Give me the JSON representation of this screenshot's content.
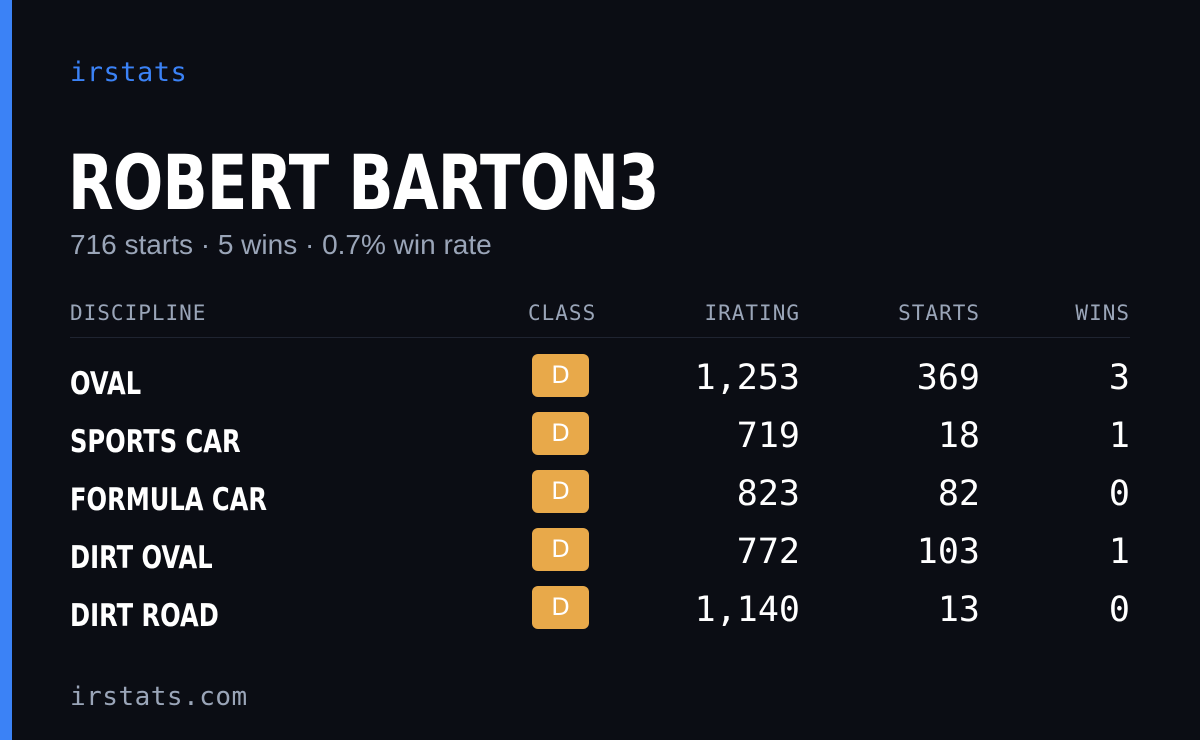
{
  "brand": "irstats",
  "driver": {
    "name": "ROBERT BARTON3",
    "summary": "716 starts · 5 wins · 0.7% win rate"
  },
  "table": {
    "headers": {
      "discipline": "DISCIPLINE",
      "class": "CLASS",
      "irating": "IRATING",
      "starts": "STARTS",
      "wins": "WINS"
    },
    "rows": [
      {
        "discipline": "OVAL",
        "class": "D",
        "irating": "1,253",
        "starts": "369",
        "wins": "3"
      },
      {
        "discipline": "SPORTS CAR",
        "class": "D",
        "irating": "719",
        "starts": "18",
        "wins": "1"
      },
      {
        "discipline": "FORMULA CAR",
        "class": "D",
        "irating": "823",
        "starts": "82",
        "wins": "0"
      },
      {
        "discipline": "DIRT OVAL",
        "class": "D",
        "irating": "772",
        "starts": "103",
        "wins": "1"
      },
      {
        "discipline": "DIRT ROAD",
        "class": "D",
        "irating": "1,140",
        "starts": "13",
        "wins": "0"
      }
    ]
  },
  "footer": "irstats.com",
  "colors": {
    "accent": "#3b82f6",
    "background": "#0b0d14",
    "muted_text": "#9aa5b8",
    "class_d_badge": "#e8a94a"
  }
}
